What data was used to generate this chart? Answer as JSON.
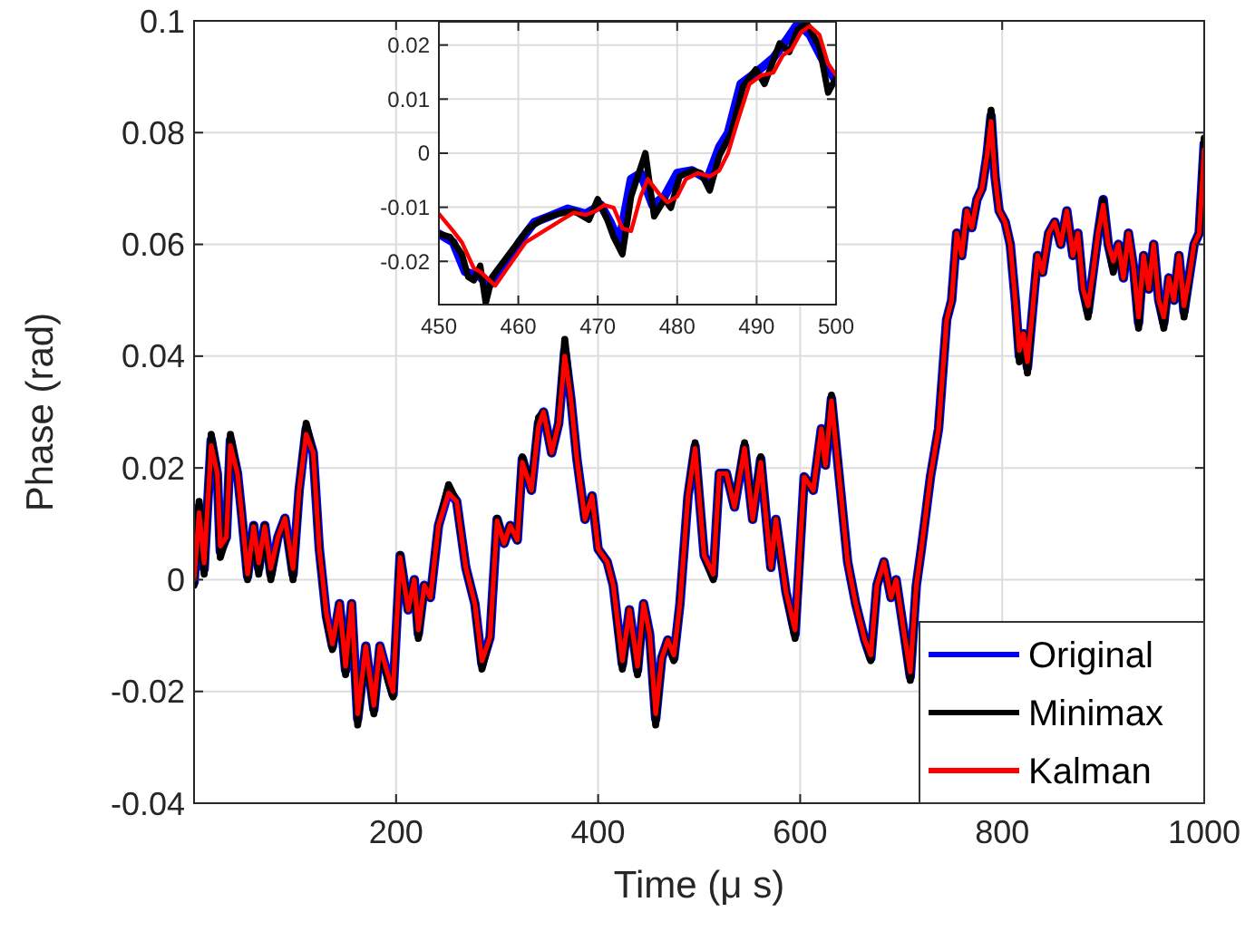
{
  "chart_data": [
    {
      "type": "line",
      "xlabel": "Time (μ s)",
      "ylabel": "Phase (rad)",
      "xlim": [
        0,
        1000
      ],
      "xticks": [
        200,
        400,
        600,
        800,
        1000
      ],
      "ylim": [
        -0.04,
        0.1
      ],
      "yticks": [
        -0.04,
        -0.02,
        0,
        0.02,
        0.04,
        0.06,
        0.08,
        0.1
      ],
      "grid": true,
      "legend": "bottom right",
      "line_style": "solid",
      "x": [
        0,
        5,
        10,
        17,
        23,
        26,
        32,
        36,
        43,
        47,
        53,
        59,
        64,
        70,
        76,
        83,
        90,
        98,
        104,
        111,
        118,
        124,
        131,
        137,
        144,
        150,
        156,
        162,
        170,
        178,
        184,
        192,
        197,
        204,
        212,
        218,
        222,
        228,
        234,
        242,
        252,
        260,
        269,
        278,
        285,
        293,
        300,
        307,
        313,
        320,
        325,
        334,
        341,
        346,
        354,
        361,
        367,
        373,
        379,
        387,
        394,
        400,
        409,
        415,
        424,
        431,
        439,
        445,
        451,
        457,
        463,
        469,
        475,
        481,
        489,
        496,
        505,
        514,
        520,
        527,
        535,
        545,
        553,
        561,
        571,
        576,
        586,
        595,
        604,
        613,
        621,
        625,
        631,
        640,
        647,
        655,
        664,
        670,
        676,
        683,
        690,
        695,
        703,
        709,
        715,
        720,
        729,
        737,
        745,
        750,
        755,
        760,
        765,
        770,
        775,
        780,
        785,
        789,
        793,
        797,
        803,
        808,
        813,
        817,
        821,
        825,
        830,
        835,
        840,
        846,
        852,
        858,
        864,
        870,
        875,
        880,
        885,
        890,
        895,
        900,
        905,
        910,
        915,
        920,
        925,
        930,
        935,
        940,
        945,
        950,
        955,
        960,
        965,
        970,
        975,
        980,
        985,
        990,
        995,
        1000
      ],
      "series": [
        {
          "name": "Original",
          "color": "#0000ff",
          "values": [
            -0.0005,
            0.013,
            0.002,
            0.025,
            0.019,
            0.005,
            0.0076,
            0.025,
            0.019,
            0.012,
            0.0006,
            0.0097,
            0.002,
            0.0097,
            0.001,
            0.0076,
            0.011,
            0.001,
            0.016,
            0.027,
            0.0227,
            0.0055,
            -0.0065,
            -0.0119,
            -0.0043,
            -0.0162,
            -0.0043,
            -0.0249,
            -0.0119,
            -0.0232,
            -0.0119,
            -0.0173,
            -0.0205,
            0.0043,
            -0.0054,
            0,
            -0.0097,
            -0.001,
            -0.0032,
            0.0097,
            0.016,
            0.014,
            0.0022,
            -0.0043,
            -0.0151,
            -0.0103,
            0.0108,
            0.0065,
            0.0097,
            0.0071,
            0.0216,
            0.016,
            0.028,
            0.03,
            0.0227,
            0.028,
            0.041,
            0.0324,
            0.0216,
            0.0108,
            0.015,
            0.0055,
            0.0032,
            -0.001,
            -0.0151,
            -0.0054,
            -0.0162,
            -0.0043,
            -0.0097,
            -0.0249,
            -0.014,
            -0.0108,
            -0.014,
            -0.0043,
            0.015,
            0.0238,
            0.0043,
            0.0006,
            0.019,
            0.019,
            0.013,
            0.0238,
            0.0108,
            0.0216,
            0.0022,
            0.0108,
            -0.0022,
            -0.0097,
            0.0184,
            0.016,
            0.027,
            0.0205,
            0.0324,
            0.016,
            0.0032,
            -0.0043,
            -0.0108,
            -0.014,
            -0.001,
            0.0032,
            -0.0032,
            0,
            -0.0097,
            -0.0173,
            -0.001,
            0.0055,
            0.0184,
            0.027,
            0.0465,
            0.05,
            0.062,
            0.058,
            0.066,
            0.063,
            0.068,
            0.07,
            0.076,
            0.083,
            0.072,
            0.066,
            0.064,
            0.06,
            0.05,
            0.04,
            0.044,
            0.038,
            0.048,
            0.058,
            0.055,
            0.062,
            0.064,
            0.06,
            0.066,
            0.058,
            0.062,
            0.052,
            0.048,
            0.055,
            0.062,
            0.068,
            0.06,
            0.056,
            0.06,
            0.054,
            0.062,
            0.056,
            0.046,
            0.058,
            0.052,
            0.06,
            0.05,
            0.046,
            0.054,
            0.05,
            0.058,
            0.048,
            0.054,
            0.06,
            0.062,
            0.078
          ]
        },
        {
          "name": "Minimax",
          "color": "#000000",
          "values": [
            -0.001,
            0.014,
            0.001,
            0.026,
            0.019,
            0.004,
            0.0076,
            0.026,
            0.019,
            0.012,
            0,
            0.0097,
            0.001,
            0.0097,
            0,
            0.0076,
            0.011,
            0,
            0.016,
            0.028,
            0.0227,
            0.0055,
            -0.007,
            -0.0125,
            -0.0043,
            -0.017,
            -0.0043,
            -0.026,
            -0.0119,
            -0.024,
            -0.0119,
            -0.018,
            -0.021,
            0.0045,
            -0.0054,
            0,
            -0.0105,
            -0.001,
            -0.0032,
            0.0097,
            0.017,
            0.014,
            0.0022,
            -0.0043,
            -0.016,
            -0.0103,
            0.011,
            0.0065,
            0.0097,
            0.0071,
            0.022,
            0.016,
            0.029,
            0.03,
            0.0227,
            0.028,
            0.043,
            0.0324,
            0.0216,
            0.0108,
            0.015,
            0.0055,
            0.0032,
            -0.001,
            -0.016,
            -0.0054,
            -0.017,
            -0.0043,
            -0.0097,
            -0.026,
            -0.014,
            -0.0108,
            -0.0145,
            -0.0043,
            0.015,
            0.0245,
            0.0043,
            0,
            0.019,
            0.019,
            0.013,
            0.0245,
            0.0108,
            0.022,
            0.0022,
            0.0108,
            -0.0022,
            -0.0105,
            0.0184,
            0.016,
            0.027,
            0.0205,
            0.033,
            0.016,
            0.0032,
            -0.0043,
            -0.0108,
            -0.0145,
            -0.001,
            0.0032,
            -0.0032,
            0,
            -0.0097,
            -0.018,
            -0.001,
            0.0055,
            0.0184,
            0.027,
            0.0465,
            0.05,
            0.062,
            0.058,
            0.066,
            0.063,
            0.068,
            0.07,
            0.076,
            0.084,
            0.072,
            0.066,
            0.064,
            0.06,
            0.05,
            0.039,
            0.044,
            0.037,
            0.048,
            0.058,
            0.055,
            0.062,
            0.064,
            0.06,
            0.066,
            0.058,
            0.062,
            0.052,
            0.047,
            0.055,
            0.062,
            0.068,
            0.06,
            0.055,
            0.06,
            0.054,
            0.062,
            0.056,
            0.045,
            0.058,
            0.052,
            0.06,
            0.05,
            0.045,
            0.054,
            0.05,
            0.058,
            0.047,
            0.054,
            0.06,
            0.062,
            0.079
          ]
        },
        {
          "name": "Kalman",
          "color": "#ff0000",
          "values": [
            0,
            0.012,
            0.003,
            0.024,
            0.019,
            0.006,
            0.0076,
            0.024,
            0.019,
            0.012,
            0.001,
            0.0095,
            0.003,
            0.0095,
            0.002,
            0.0076,
            0.011,
            0.002,
            0.016,
            0.026,
            0.0227,
            0.0055,
            -0.006,
            -0.0115,
            -0.0043,
            -0.0155,
            -0.0043,
            -0.024,
            -0.0119,
            -0.0225,
            -0.0119,
            -0.017,
            -0.02,
            0.004,
            -0.0054,
            0,
            -0.009,
            -0.001,
            -0.0032,
            0.0097,
            0.0155,
            0.014,
            0.0022,
            -0.0043,
            -0.0145,
            -0.0103,
            0.0105,
            0.0065,
            0.0097,
            0.0071,
            0.021,
            0.016,
            0.0275,
            0.03,
            0.0227,
            0.028,
            0.04,
            0.0324,
            0.0216,
            0.0108,
            0.015,
            0.0055,
            0.0032,
            -0.001,
            -0.0145,
            -0.0054,
            -0.0155,
            -0.0043,
            -0.0097,
            -0.024,
            -0.014,
            -0.0108,
            -0.0135,
            -0.0043,
            0.015,
            0.0235,
            0.0043,
            0.001,
            0.019,
            0.019,
            0.013,
            0.0235,
            0.0108,
            0.021,
            0.0022,
            0.0108,
            -0.0022,
            -0.009,
            0.0184,
            0.016,
            0.027,
            0.0205,
            0.032,
            0.016,
            0.0032,
            -0.0043,
            -0.0108,
            -0.0135,
            -0.001,
            0.0032,
            -0.0032,
            0,
            -0.0097,
            -0.0165,
            -0.001,
            0.0055,
            0.0184,
            0.027,
            0.0465,
            0.05,
            0.062,
            0.058,
            0.066,
            0.063,
            0.068,
            0.07,
            0.076,
            0.082,
            0.072,
            0.066,
            0.064,
            0.06,
            0.05,
            0.041,
            0.044,
            0.039,
            0.048,
            0.058,
            0.055,
            0.062,
            0.064,
            0.06,
            0.066,
            0.058,
            0.062,
            0.052,
            0.049,
            0.055,
            0.062,
            0.067,
            0.06,
            0.057,
            0.06,
            0.054,
            0.062,
            0.056,
            0.047,
            0.058,
            0.052,
            0.06,
            0.05,
            0.047,
            0.054,
            0.05,
            0.058,
            0.049,
            0.054,
            0.06,
            0.062,
            0.077
          ]
        }
      ]
    },
    {
      "type": "line",
      "xlim": [
        450,
        500
      ],
      "xticks": [
        450,
        460,
        470,
        480,
        490,
        500
      ],
      "ylim": [
        -0.028,
        0.0243
      ],
      "yticks": [
        -0.02,
        -0.01,
        0,
        0.01,
        0.02
      ],
      "grid": true,
      "line_style": "solid",
      "series": [
        {
          "color": "#0000ff",
          "x": [
            450,
            451.8,
            453.3,
            455.2,
            456.3,
            457.9,
            460.1,
            462,
            463.9,
            466.2,
            468.5,
            470.4,
            471.6,
            472.7,
            474.2,
            475.4,
            476.9,
            478.4,
            480,
            481.9,
            483.8,
            485.3,
            486.4,
            488,
            489.9,
            492.1,
            493.7,
            495.2,
            496.7,
            498.2,
            500
          ],
          "values": [
            -0.0149,
            -0.0165,
            -0.0219,
            -0.0229,
            -0.0245,
            -0.0219,
            -0.0165,
            -0.0128,
            -0.0117,
            -0.0103,
            -0.0112,
            -0.0096,
            -0.0128,
            -0.0165,
            -0.0048,
            -0.0037,
            -0.0096,
            -0.008,
            -0.0037,
            -0.0032,
            -0.0048,
            0.0011,
            0.0037,
            0.0128,
            0.0149,
            0.0176,
            0.0208,
            0.024,
            0.0219,
            0.0176,
            0.0133
          ]
        },
        {
          "color": "#000000",
          "x": [
            450,
            451.4,
            452.9,
            453.7,
            454.4,
            455.2,
            455.9,
            456.7,
            457.5,
            459.4,
            461.3,
            463.2,
            465.1,
            467,
            468.9,
            470,
            471.2,
            472,
            473.1,
            474.2,
            476,
            477.1,
            478.4,
            479.2,
            480.3,
            481.9,
            483,
            484.1,
            485.3,
            486.8,
            488.3,
            489.9,
            491,
            492.9,
            494.1,
            495.2,
            496.3,
            497.9,
            499,
            500
          ],
          "values": [
            -0.0149,
            -0.0155,
            -0.0187,
            -0.0229,
            -0.0235,
            -0.0208,
            -0.0277,
            -0.0229,
            -0.0213,
            -0.0176,
            -0.0139,
            -0.0121,
            -0.0112,
            -0.0107,
            -0.0123,
            -0.0085,
            -0.0123,
            -0.0155,
            -0.0187,
            -0.008,
            0,
            -0.0117,
            -0.0085,
            -0.0101,
            -0.0043,
            -0.0032,
            -0.0037,
            -0.0069,
            -0.0005,
            0.0037,
            0.0123,
            0.0155,
            0.0128,
            0.0203,
            0.0187,
            0.0229,
            0.024,
            0.0197,
            0.0112,
            0.0139
          ]
        },
        {
          "color": "#ff0000",
          "x": [
            450,
            451.8,
            452.9,
            454.4,
            455.2,
            457.1,
            458.6,
            460.9,
            463.2,
            465.5,
            467,
            468.5,
            469.7,
            470.8,
            472,
            473.1,
            474.2,
            475.4,
            476.3,
            477.7,
            478.8,
            480,
            481.1,
            482.6,
            484.1,
            485.3,
            486.4,
            487.6,
            489.1,
            490.6,
            492.1,
            493.3,
            494.4,
            495.6,
            496.7,
            497.9,
            499,
            500
          ],
          "values": [
            -0.0112,
            -0.0144,
            -0.0165,
            -0.0213,
            -0.0219,
            -0.0245,
            -0.0213,
            -0.0165,
            -0.0144,
            -0.0123,
            -0.011,
            -0.0114,
            -0.0107,
            -0.0096,
            -0.0101,
            -0.0139,
            -0.0144,
            -0.008,
            -0.0048,
            -0.0075,
            -0.0091,
            -0.008,
            -0.0048,
            -0.0037,
            -0.0043,
            -0.0032,
            0,
            0.0059,
            0.0128,
            0.0144,
            0.0149,
            0.0181,
            0.0192,
            0.0224,
            0.0235,
            0.0219,
            0.0165,
            0.0144
          ]
        }
      ]
    }
  ]
}
